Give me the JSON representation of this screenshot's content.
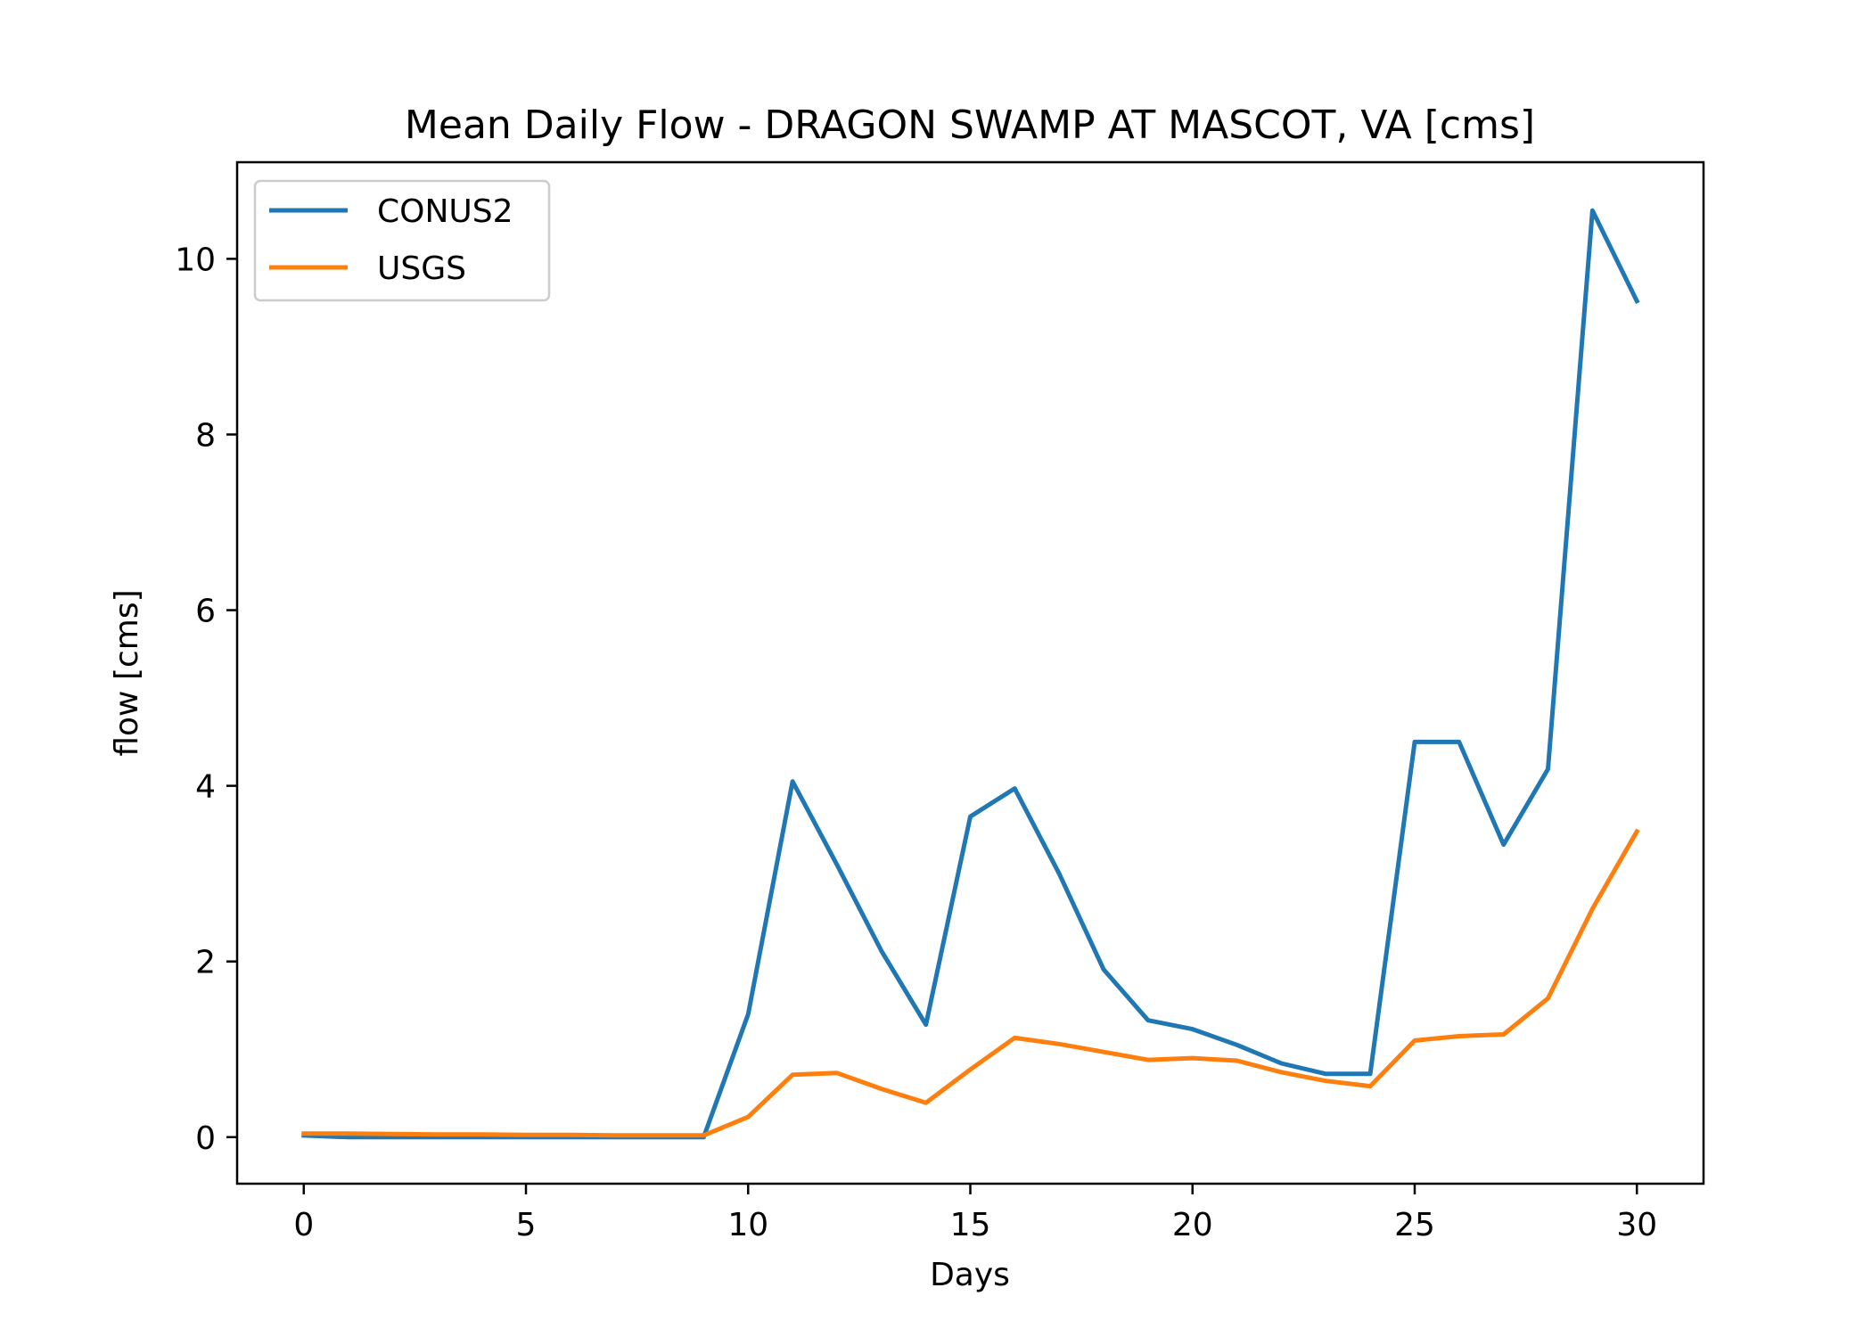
{
  "chart_data": {
    "type": "line",
    "title": "Mean Daily Flow - DRAGON SWAMP AT MASCOT, VA [cms]",
    "xlabel": "Days",
    "ylabel": "flow [cms]",
    "xlim": [
      -1.5,
      31.5
    ],
    "ylim": [
      -0.53,
      11.1
    ],
    "x_ticks": [
      0,
      5,
      10,
      15,
      20,
      25,
      30
    ],
    "y_ticks": [
      0,
      2,
      4,
      6,
      8,
      10
    ],
    "grid": false,
    "legend_position": "upper-left",
    "x": [
      0,
      1,
      2,
      3,
      4,
      5,
      6,
      7,
      8,
      9,
      10,
      11,
      12,
      13,
      14,
      15,
      16,
      17,
      18,
      19,
      20,
      21,
      22,
      23,
      24,
      25,
      26,
      27,
      28,
      29,
      30
    ],
    "series": [
      {
        "name": "CONUS2",
        "color": "#1f77b4",
        "values": [
          0.02,
          0.0,
          0.0,
          0.0,
          0.0,
          0.0,
          0.0,
          0.0,
          0.0,
          0.0,
          1.4,
          4.05,
          3.1,
          2.12,
          1.28,
          3.65,
          3.97,
          3.0,
          1.91,
          1.33,
          1.23,
          1.05,
          0.84,
          0.72,
          0.72,
          4.5,
          4.5,
          3.33,
          4.19,
          10.55,
          9.52
        ]
      },
      {
        "name": "USGS",
        "color": "#ff7f0e",
        "values": [
          0.04,
          0.04,
          0.035,
          0.03,
          0.03,
          0.025,
          0.025,
          0.02,
          0.02,
          0.02,
          0.23,
          0.71,
          0.73,
          0.55,
          0.39,
          0.77,
          1.13,
          1.06,
          0.97,
          0.88,
          0.9,
          0.87,
          0.74,
          0.64,
          0.58,
          1.1,
          1.15,
          1.17,
          1.58,
          2.6,
          3.48
        ]
      }
    ]
  }
}
